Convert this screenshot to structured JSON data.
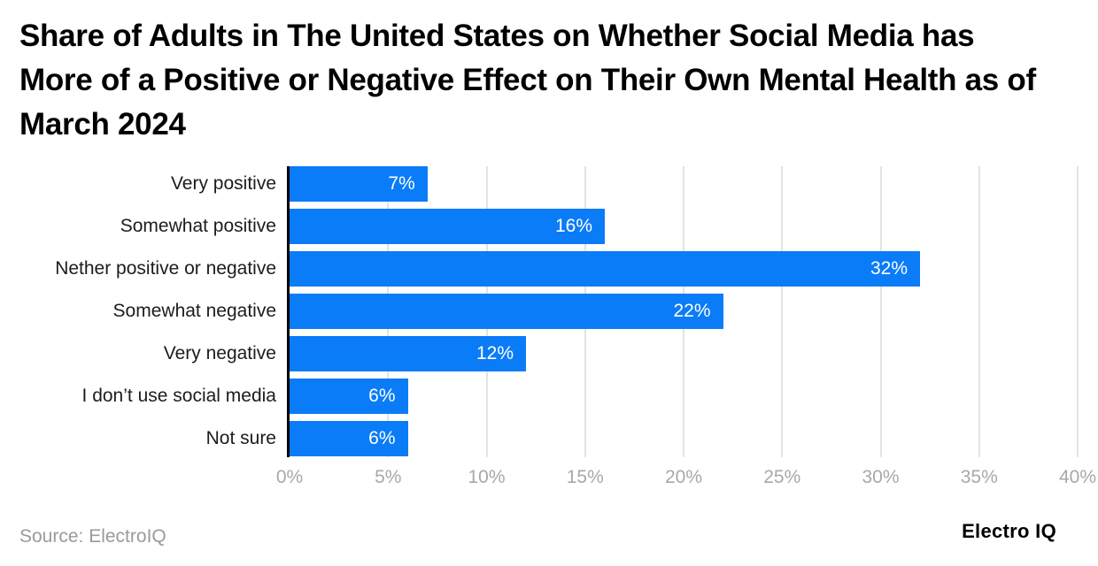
{
  "title": "Share of Adults in The United States on Whether Social Media has More of a Positive or Negative Effect on Their Own Mental Health as of March 2024",
  "footer": {
    "source": "Source: ElectroIQ",
    "brand": "Electro IQ"
  },
  "colors": {
    "bar": "#0b7cf7",
    "grid": "#e3e3e3",
    "axis": "#000000",
    "tick": "#a8a8a8",
    "category_label": "#1c1c1c",
    "value_label": "#ffffff"
  },
  "chart_data": {
    "type": "bar",
    "orientation": "horizontal",
    "title": "Share of Adults in The United States on Whether Social Media has More of a Positive or Negative Effect on Their Own Mental Health as of March 2024",
    "categories": [
      "Very positive",
      "Somewhat positive",
      "Nether positive or negative",
      "Somewhat negative",
      "Very negative",
      "I don’t use social media",
      "Not sure"
    ],
    "values": [
      7,
      16,
      32,
      22,
      12,
      6,
      6
    ],
    "value_labels": [
      "7%",
      "16%",
      "32%",
      "22%",
      "12%",
      "6%",
      "6%"
    ],
    "xlim": [
      0,
      40
    ],
    "x_tick_values": [
      0,
      5,
      10,
      15,
      20,
      25,
      30,
      35,
      40
    ],
    "x_tick_labels": [
      "0%",
      "5%",
      "10%",
      "15%",
      "20%",
      "25%",
      "30%",
      "35%",
      "40%"
    ],
    "xlabel": "",
    "ylabel": "",
    "grid": true,
    "legend": false
  }
}
